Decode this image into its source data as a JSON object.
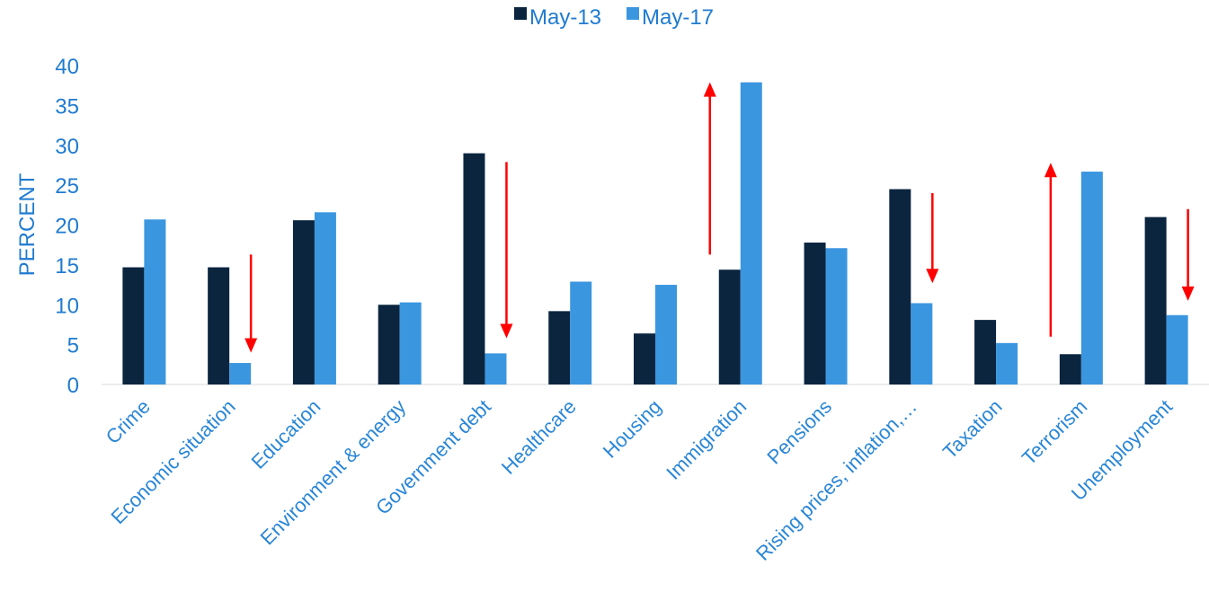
{
  "chart_data": {
    "type": "bar",
    "title": "",
    "xlabel": "",
    "ylabel": "PERCENT",
    "ylim": [
      0,
      40
    ],
    "yticks": [
      0,
      5,
      10,
      15,
      20,
      25,
      30,
      35,
      40
    ],
    "grid": false,
    "legend_position": "top-center",
    "categories": [
      "Crime",
      "Economic situation",
      "Education",
      "Environment & energy",
      "Government debt",
      "Healthcare",
      "Housing",
      "Immigration",
      "Pensions",
      "Rising prices, inflation,…",
      "Taxation",
      "Terrorism",
      "Unemployment"
    ],
    "series": [
      {
        "name": "May-13",
        "color": "#0b253f",
        "values": [
          14.7,
          14.7,
          20.6,
          10.0,
          29.0,
          9.2,
          6.4,
          14.4,
          17.8,
          24.5,
          8.1,
          3.8,
          21.0
        ]
      },
      {
        "name": "May-17",
        "color": "#3b96e0",
        "values": [
          20.7,
          2.7,
          21.6,
          10.3,
          3.9,
          12.9,
          12.5,
          37.9,
          17.1,
          10.2,
          5.2,
          26.7,
          8.7
        ]
      }
    ],
    "annotations": [
      {
        "type": "arrow-down",
        "category": "Economic situation",
        "from": 16.3,
        "to": 4.0,
        "color": "#ff0000"
      },
      {
        "type": "arrow-down",
        "category": "Government debt",
        "from": 27.9,
        "to": 5.8,
        "color": "#ff0000"
      },
      {
        "type": "arrow-up",
        "category": "Immigration",
        "from": 16.3,
        "to": 37.9,
        "color": "#ff0000"
      },
      {
        "type": "arrow-down",
        "category": "Rising prices, inflation,…",
        "from": 24.0,
        "to": 12.7,
        "color": "#ff0000"
      },
      {
        "type": "arrow-up",
        "category": "Terrorism",
        "from": 6.0,
        "to": 27.8,
        "color": "#ff0000"
      },
      {
        "type": "arrow-down",
        "category": "Unemployment",
        "from": 22.0,
        "to": 10.5,
        "color": "#ff0000"
      }
    ],
    "colors": {
      "axis_text": "#1f7bd0",
      "category_text": "#2a86d6",
      "axis_line": "#d9d9d9"
    }
  }
}
